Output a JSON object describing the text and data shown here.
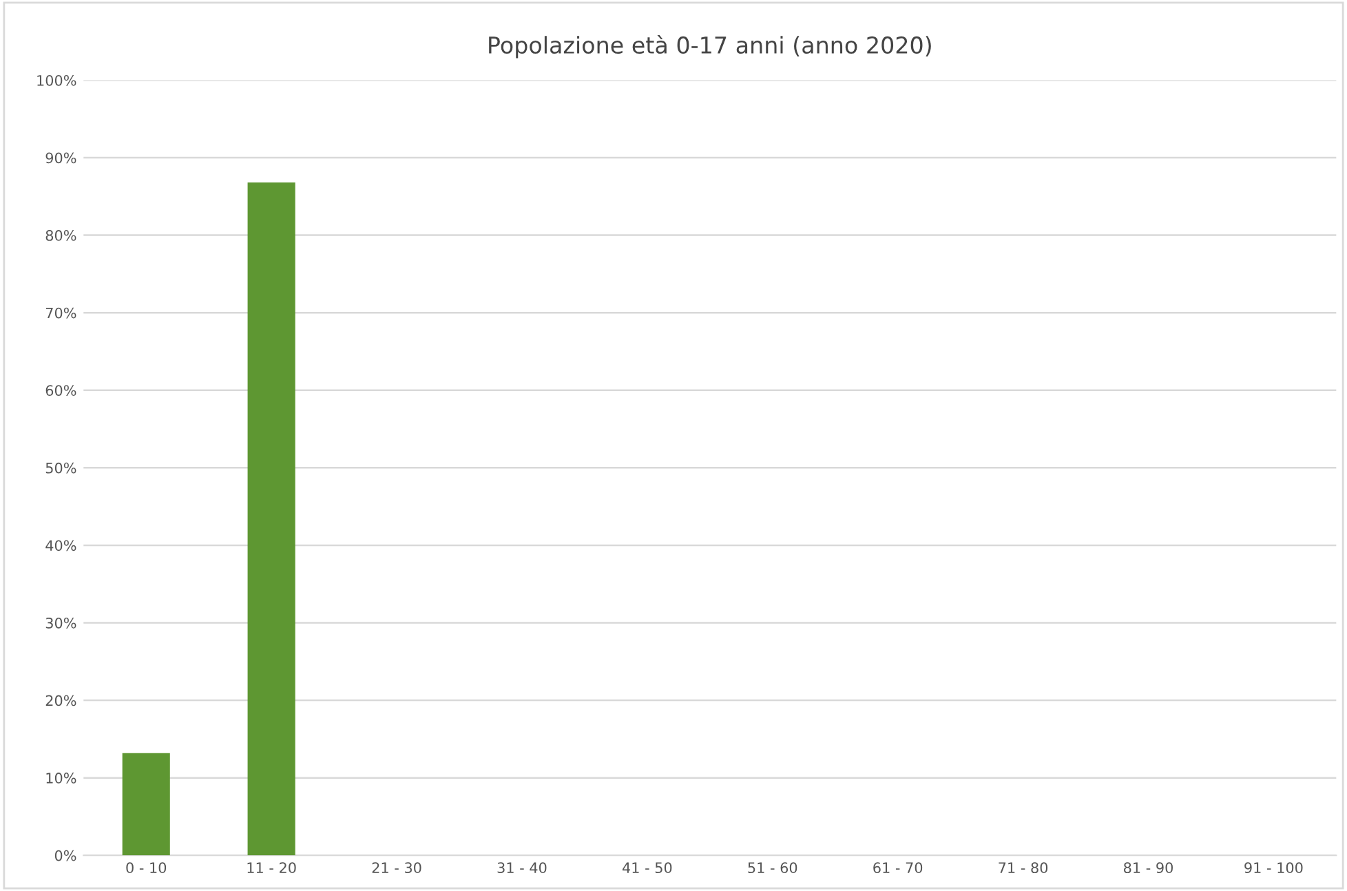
{
  "chart_data": {
    "type": "bar",
    "title": "Popolazione età 0-17 anni (anno 2020)",
    "categories": [
      "0 - 10",
      "11 - 20",
      "21 - 30",
      "31 - 40",
      "41 - 50",
      "51 - 60",
      "61 - 70",
      "71 - 80",
      "81 - 90",
      "91 - 100"
    ],
    "values": [
      13.2,
      86.8,
      0,
      0,
      0,
      0,
      0,
      0,
      0,
      0
    ],
    "color": "#5e9732",
    "ylim": [
      0,
      100
    ],
    "yticks": [
      {
        "value": 0,
        "label": "0%"
      },
      {
        "value": 10,
        "label": "10%"
      },
      {
        "value": 20,
        "label": "20%"
      },
      {
        "value": 30,
        "label": "30%"
      },
      {
        "value": 40,
        "label": "40%"
      },
      {
        "value": 50,
        "label": "50%"
      },
      {
        "value": 60,
        "label": "60%"
      },
      {
        "value": 70,
        "label": "70%"
      },
      {
        "value": 80,
        "label": "80%"
      },
      {
        "value": 90,
        "label": "90%"
      },
      {
        "value": 100,
        "label": "100%"
      }
    ],
    "grid": "y"
  }
}
